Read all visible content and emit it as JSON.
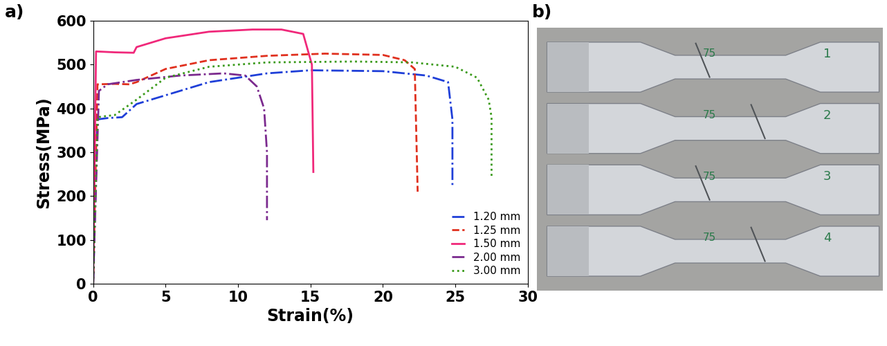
{
  "chart_data": {
    "type": "line",
    "panel_label": "a)",
    "x_label": "Strain(%)",
    "y_label": "Stress(MPa)",
    "xlim": [
      0,
      30
    ],
    "xticks": [
      0,
      5,
      10,
      15,
      20,
      25,
      30
    ],
    "ylim": [
      0,
      600
    ],
    "yticks": [
      0,
      100,
      200,
      300,
      400,
      500,
      600
    ],
    "grid": false,
    "legend": "lower right",
    "series": [
      {
        "name": "1.20 mm",
        "color": "#1f3fd8",
        "line_style": "dashdot",
        "x": [
          0,
          0.3,
          1.0,
          2.0,
          3.0,
          5.0,
          8.0,
          12.0,
          15.0,
          20.0,
          23.0,
          24.5,
          24.8,
          24.8
        ],
        "values": [
          0,
          375,
          378,
          380,
          410,
          430,
          460,
          480,
          487,
          485,
          475,
          460,
          375,
          220
        ]
      },
      {
        "name": "1.25 mm",
        "color": "#e0301e",
        "line_style": "dashed",
        "x": [
          0,
          0.3,
          1.5,
          2.5,
          3.0,
          5.0,
          8.0,
          12.0,
          16.0,
          20.0,
          21.5,
          22.2,
          22.4
        ],
        "values": [
          0,
          455,
          456,
          455,
          460,
          490,
          510,
          520,
          525,
          522,
          510,
          490,
          210
        ]
      },
      {
        "name": "1.50 mm",
        "color": "#f0287a",
        "line_style": "solid",
        "x": [
          0,
          0.2,
          1.5,
          2.8,
          3.0,
          5.0,
          8.0,
          11.0,
          13.0,
          14.5,
          15.1,
          15.2
        ],
        "values": [
          0,
          530,
          528,
          527,
          540,
          560,
          575,
          580,
          580,
          570,
          500,
          255
        ]
      },
      {
        "name": "2.00 mm",
        "color": "#7b2a8e",
        "line_style": "dashdot",
        "x": [
          0,
          0.4,
          1.0,
          3.0,
          6.0,
          9.0,
          10.5,
          11.3,
          11.8,
          12.0,
          12.0
        ],
        "values": [
          0,
          440,
          455,
          465,
          475,
          480,
          475,
          450,
          400,
          300,
          145
        ]
      },
      {
        "name": "3.00 mm",
        "color": "#3a9a1a",
        "line_style": "dotted",
        "x": [
          0,
          0.3,
          1.5,
          3.0,
          5.0,
          8.0,
          12.0,
          18.0,
          22.0,
          25.0,
          26.5,
          27.3,
          27.5,
          27.5
        ],
        "values": [
          0,
          380,
          385,
          420,
          470,
          495,
          505,
          507,
          505,
          495,
          470,
          420,
          380,
          245
        ]
      }
    ]
  },
  "photo": {
    "panel_label": "b)",
    "specimens": [
      {
        "marks": [
          "75",
          "1"
        ]
      },
      {
        "marks": [
          "75",
          "2"
        ]
      },
      {
        "marks": [
          "75",
          "3"
        ]
      },
      {
        "marks": [
          "75",
          "4"
        ]
      }
    ]
  }
}
